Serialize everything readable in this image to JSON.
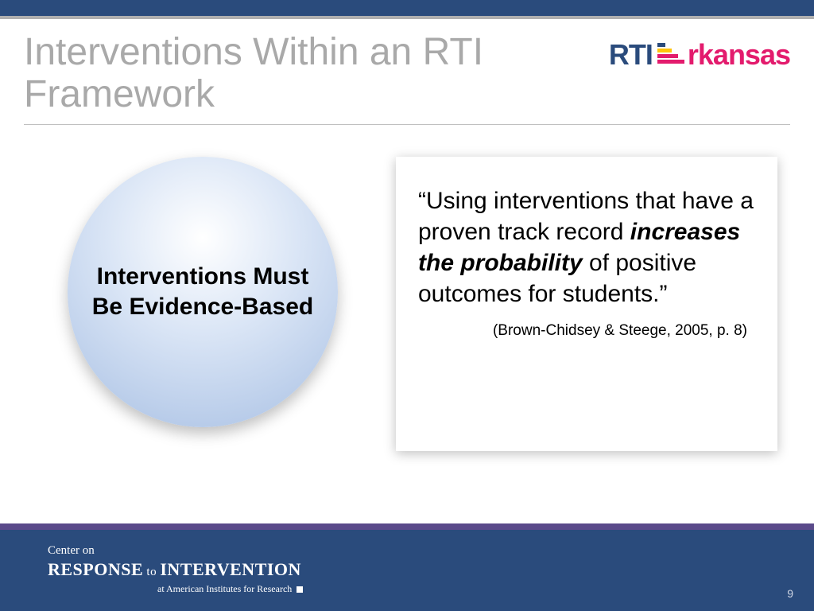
{
  "colors": {
    "top_bar": "#2a4b7c",
    "top_rule": "#b0b0b0",
    "title_text": "#a9a9a9",
    "footer_accent": "#5a4a8a",
    "footer_bg": "#2a4b7c",
    "logo_navy": "#2a4b7c",
    "logo_pink": "#e31b6d",
    "logo_yellow": "#ffc40c",
    "circle_grad_start": "#ffffff",
    "circle_grad_mid": "#dbe6f6",
    "circle_grad_end": "#a7bfe3"
  },
  "logo": {
    "left": "RTI",
    "right": "rkansas"
  },
  "title": "Interventions Within an RTI Framework",
  "circle": {
    "label": "Interventions Must Be Evidence-Based"
  },
  "quote": {
    "pre": "“Using interventions that have a proven track record ",
    "em": "increases the probability",
    "post": " of positive outcomes for students.”",
    "citation": "(Brown-Chidsey & Steege, 2005, p. 8)"
  },
  "footer": {
    "line1": "Center on",
    "line2_a": "RESPONSE",
    "line2_to": " to ",
    "line2_b": "INTERVENTION",
    "line3": "at American Institutes for Research"
  },
  "page_number": "9"
}
